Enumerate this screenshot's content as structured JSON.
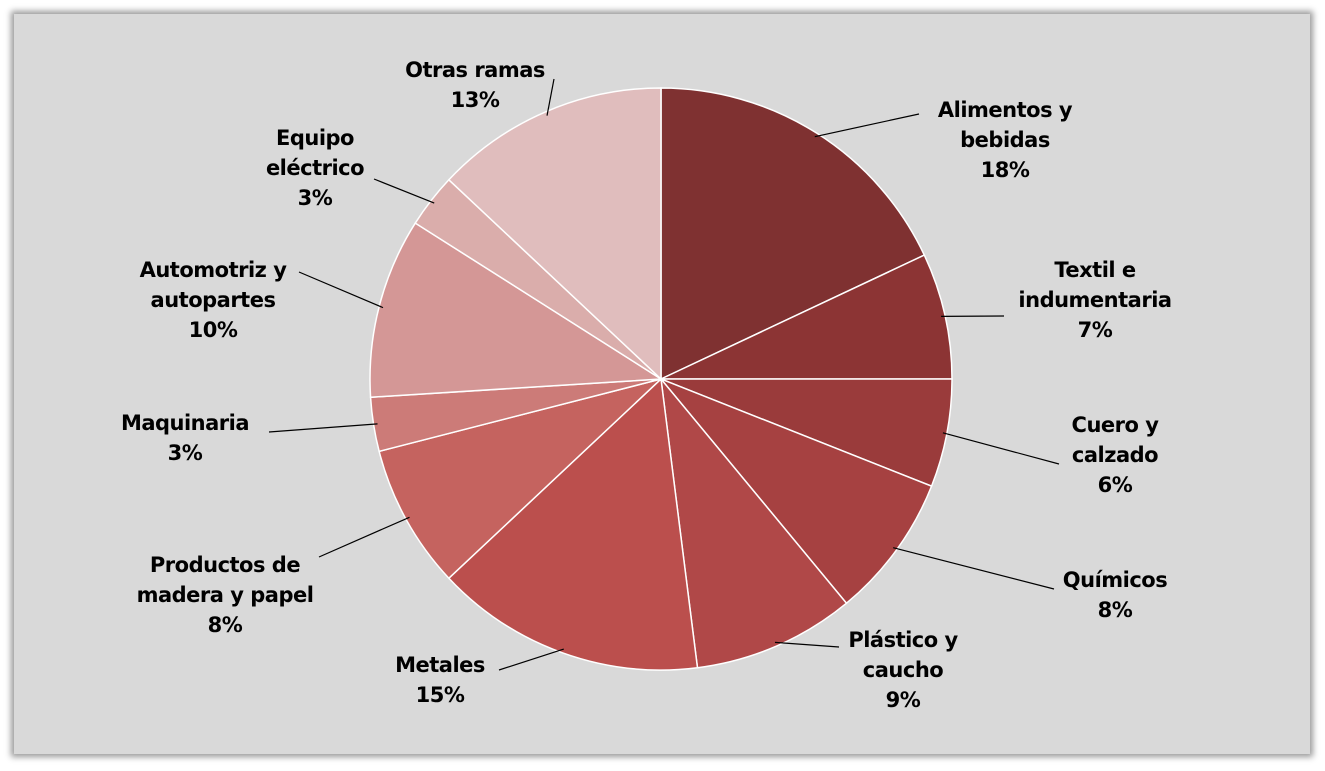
{
  "chart_data": {
    "type": "pie",
    "categories": [
      "Alimentos y bebidas",
      "Textil e indumentaria",
      "Cuero y calzado",
      "Químicos",
      "Plástico y caucho",
      "Metales",
      "Productos de madera y papel",
      "Maquinaria",
      "Automotriz y autopartes",
      "Equipo eléctrico",
      "Otras ramas"
    ],
    "values": [
      18,
      7,
      6,
      8,
      9,
      15,
      8,
      3,
      10,
      3,
      13
    ],
    "value_labels": [
      "18%",
      "7%",
      "6%",
      "8%",
      "9%",
      "15%",
      "8%",
      "3%",
      "10%",
      "3%",
      "13%"
    ],
    "colors": [
      "#7f3131",
      "#8c3434",
      "#9a3b3b",
      "#a64141",
      "#b04848",
      "#bb4f4d",
      "#c5635f",
      "#cc7b78",
      "#d49796",
      "#daadab",
      "#e0bdbd"
    ]
  }
}
